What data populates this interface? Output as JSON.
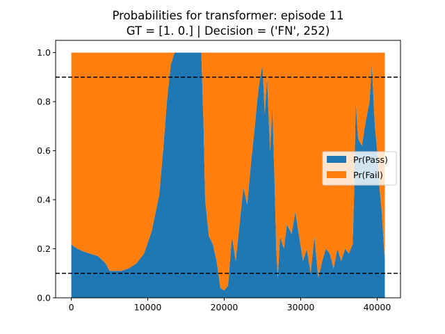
{
  "chart_data": {
    "type": "area",
    "stacked": true,
    "title": "Probabilities for transformer: episode 11",
    "subtitle": "GT = [1. 0.] | Decision = ('FN', 252)",
    "xlabel": "",
    "ylabel": "",
    "xlim": [
      -2050,
      43050
    ],
    "ylim": [
      0.0,
      1.05
    ],
    "x_ticks": [
      0,
      10000,
      20000,
      30000,
      40000
    ],
    "y_ticks": [
      0.0,
      0.2,
      0.4,
      0.6,
      0.8,
      1.0
    ],
    "y_tick_labels": [
      "0.0",
      "0.2",
      "0.4",
      "0.6",
      "0.8",
      "1.0"
    ],
    "thresholds": [
      0.9,
      0.1
    ],
    "legend_position": "center-right",
    "grid": false,
    "colors": {
      "pass": "#1f77b4",
      "fail": "#ff7f0e",
      "threshold": "#000000"
    },
    "x": [
      0,
      300,
      800,
      1500,
      2500,
      3500,
      4500,
      5000,
      5500,
      6500,
      7500,
      8500,
      9500,
      10500,
      11500,
      12000,
      12500,
      13000,
      13500,
      14000,
      15000,
      16000,
      17000,
      17300,
      17500,
      18000,
      18500,
      19000,
      19500,
      20000,
      20500,
      21000,
      21500,
      22000,
      22500,
      23000,
      23500,
      24000,
      24300,
      24600,
      25000,
      25300,
      25600,
      26000,
      26300,
      26600,
      26800,
      27000,
      27300,
      27800,
      28200,
      28800,
      29300,
      29800,
      30300,
      30800,
      31300,
      31800,
      32300,
      32800,
      33300,
      33800,
      34300,
      34800,
      35300,
      35800,
      36300,
      36800,
      37000,
      37200,
      37500,
      38000,
      38500,
      39000,
      39300,
      39700,
      40000,
      40300,
      40600,
      41000
    ],
    "series": [
      {
        "name": "Pr(Pass)",
        "values": [
          0.22,
          0.21,
          0.2,
          0.19,
          0.18,
          0.17,
          0.14,
          0.11,
          0.11,
          0.11,
          0.12,
          0.14,
          0.18,
          0.27,
          0.42,
          0.6,
          0.8,
          0.95,
          1.0,
          1.0,
          1.0,
          1.0,
          1.0,
          0.7,
          0.4,
          0.25,
          0.22,
          0.15,
          0.04,
          0.03,
          0.05,
          0.25,
          0.15,
          0.3,
          0.45,
          0.38,
          0.55,
          0.7,
          0.8,
          0.88,
          0.95,
          0.75,
          0.9,
          0.6,
          0.78,
          0.45,
          0.2,
          0.08,
          0.25,
          0.2,
          0.3,
          0.26,
          0.35,
          0.25,
          0.15,
          0.2,
          0.1,
          0.25,
          0.08,
          0.15,
          0.2,
          0.18,
          0.12,
          0.2,
          0.15,
          0.2,
          0.18,
          0.22,
          0.45,
          0.8,
          0.65,
          0.62,
          0.72,
          0.8,
          0.95,
          0.7,
          0.6,
          0.45,
          0.35,
          0.15
        ]
      },
      {
        "name": "Pr(Fail)",
        "values": [
          0.78,
          0.79,
          0.8,
          0.81,
          0.82,
          0.83,
          0.86,
          0.89,
          0.89,
          0.89,
          0.88,
          0.86,
          0.82,
          0.73,
          0.58,
          0.4,
          0.2,
          0.05,
          0.0,
          0.0,
          0.0,
          0.0,
          0.0,
          0.3,
          0.6,
          0.75,
          0.78,
          0.85,
          0.96,
          0.97,
          0.95,
          0.75,
          0.85,
          0.7,
          0.55,
          0.62,
          0.45,
          0.3,
          0.2,
          0.12,
          0.05,
          0.25,
          0.1,
          0.4,
          0.22,
          0.55,
          0.8,
          0.92,
          0.75,
          0.8,
          0.7,
          0.74,
          0.65,
          0.75,
          0.85,
          0.8,
          0.9,
          0.75,
          0.92,
          0.85,
          0.8,
          0.82,
          0.88,
          0.8,
          0.85,
          0.8,
          0.82,
          0.78,
          0.55,
          0.2,
          0.35,
          0.38,
          0.28,
          0.2,
          0.05,
          0.3,
          0.4,
          0.55,
          0.65,
          0.85
        ]
      }
    ]
  }
}
